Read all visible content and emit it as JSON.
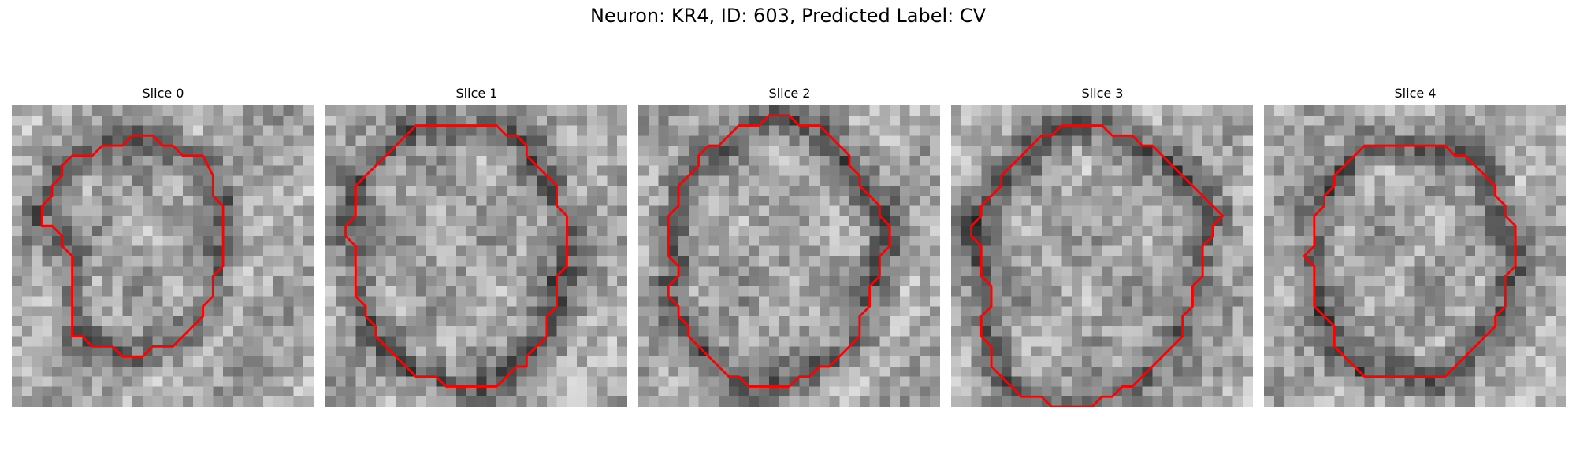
{
  "figure": {
    "title": "Neuron: KR4, ID: 603, Predicted Label: CV"
  },
  "contour_color": "#ff0000",
  "grid_size": 30,
  "panels": [
    {
      "title": "Slice 0",
      "seed": 11,
      "contour": [
        [
          13,
          3
        ],
        [
          14,
          3
        ],
        [
          15,
          4
        ],
        [
          16,
          4
        ],
        [
          17,
          5
        ],
        [
          19,
          5
        ],
        [
          20,
          7
        ],
        [
          20,
          9
        ],
        [
          21,
          10
        ],
        [
          21,
          16
        ],
        [
          20,
          17
        ],
        [
          20,
          19
        ],
        [
          19,
          20
        ],
        [
          19,
          21
        ],
        [
          16,
          24
        ],
        [
          14,
          24
        ],
        [
          13,
          25
        ],
        [
          11,
          25
        ],
        [
          10,
          24
        ],
        [
          8,
          24
        ],
        [
          7,
          23
        ],
        [
          6,
          23
        ],
        [
          6,
          15
        ],
        [
          5,
          14
        ],
        [
          5,
          13
        ],
        [
          4,
          12
        ],
        [
          3,
          12
        ],
        [
          3,
          10
        ],
        [
          4,
          9
        ],
        [
          4,
          8
        ],
        [
          5,
          7
        ],
        [
          5,
          6
        ],
        [
          6,
          5
        ],
        [
          8,
          5
        ],
        [
          9,
          4
        ],
        [
          11,
          4
        ],
        [
          12,
          3
        ]
      ]
    },
    {
      "title": "Slice 1",
      "seed": 23,
      "contour": [
        [
          12,
          2
        ],
        [
          17,
          2
        ],
        [
          18,
          3
        ],
        [
          19,
          3
        ],
        [
          20,
          4
        ],
        [
          20,
          5
        ],
        [
          21,
          6
        ],
        [
          22,
          7
        ],
        [
          23,
          8
        ],
        [
          23,
          10
        ],
        [
          24,
          11
        ],
        [
          24,
          16
        ],
        [
          23,
          17
        ],
        [
          23,
          20
        ],
        [
          22,
          21
        ],
        [
          22,
          23
        ],
        [
          21,
          24
        ],
        [
          20,
          25
        ],
        [
          20,
          26
        ],
        [
          19,
          26
        ],
        [
          18,
          27
        ],
        [
          17,
          28
        ],
        [
          12,
          28
        ],
        [
          11,
          27
        ],
        [
          9,
          27
        ],
        [
          8,
          26
        ],
        [
          7,
          25
        ],
        [
          6,
          24
        ],
        [
          5,
          23
        ],
        [
          5,
          22
        ],
        [
          4,
          21
        ],
        [
          4,
          20
        ],
        [
          3,
          19
        ],
        [
          3,
          14
        ],
        [
          2,
          13
        ],
        [
          2,
          12
        ],
        [
          3,
          11
        ],
        [
          3,
          8
        ],
        [
          4,
          7
        ],
        [
          5,
          6
        ],
        [
          6,
          5
        ],
        [
          7,
          4
        ],
        [
          8,
          3
        ],
        [
          9,
          2
        ]
      ]
    },
    {
      "title": "Slice 2",
      "seed": 37,
      "contour": [
        [
          13,
          1
        ],
        [
          15,
          1
        ],
        [
          16,
          2
        ],
        [
          18,
          2
        ],
        [
          19,
          3
        ],
        [
          20,
          4
        ],
        [
          21,
          5
        ],
        [
          21,
          6
        ],
        [
          22,
          7
        ],
        [
          22,
          8
        ],
        [
          23,
          9
        ],
        [
          24,
          10
        ],
        [
          24,
          11
        ],
        [
          25,
          12
        ],
        [
          25,
          14
        ],
        [
          24,
          15
        ],
        [
          24,
          17
        ],
        [
          23,
          18
        ],
        [
          23,
          20
        ],
        [
          22,
          21
        ],
        [
          22,
          23
        ],
        [
          21,
          24
        ],
        [
          20,
          25
        ],
        [
          19,
          26
        ],
        [
          18,
          26
        ],
        [
          17,
          27
        ],
        [
          16,
          27
        ],
        [
          15,
          28
        ],
        [
          11,
          28
        ],
        [
          10,
          27
        ],
        [
          9,
          27
        ],
        [
          8,
          26
        ],
        [
          7,
          25
        ],
        [
          6,
          24
        ],
        [
          5,
          23
        ],
        [
          5,
          22
        ],
        [
          4,
          21
        ],
        [
          4,
          20
        ],
        [
          3,
          19
        ],
        [
          3,
          18
        ],
        [
          4,
          17
        ],
        [
          4,
          16
        ],
        [
          3,
          15
        ],
        [
          3,
          11
        ],
        [
          4,
          10
        ],
        [
          4,
          8
        ],
        [
          5,
          7
        ],
        [
          6,
          6
        ],
        [
          6,
          5
        ],
        [
          7,
          4
        ],
        [
          8,
          4
        ],
        [
          9,
          3
        ],
        [
          10,
          2
        ],
        [
          12,
          2
        ]
      ]
    },
    {
      "title": "Slice 3",
      "seed": 51,
      "contour": [
        [
          11,
          2
        ],
        [
          15,
          2
        ],
        [
          16,
          3
        ],
        [
          18,
          3
        ],
        [
          19,
          4
        ],
        [
          20,
          4
        ],
        [
          21,
          5
        ],
        [
          22,
          6
        ],
        [
          23,
          7
        ],
        [
          24,
          8
        ],
        [
          25,
          9
        ],
        [
          26,
          10
        ],
        [
          27,
          11
        ],
        [
          26,
          12
        ],
        [
          26,
          13
        ],
        [
          25,
          14
        ],
        [
          25,
          17
        ],
        [
          24,
          18
        ],
        [
          24,
          20
        ],
        [
          23,
          21
        ],
        [
          23,
          23
        ],
        [
          22,
          24
        ],
        [
          21,
          25
        ],
        [
          20,
          26
        ],
        [
          19,
          27
        ],
        [
          18,
          28
        ],
        [
          17,
          28
        ],
        [
          16,
          29
        ],
        [
          15,
          29
        ],
        [
          14,
          30
        ],
        [
          10,
          30
        ],
        [
          9,
          29
        ],
        [
          7,
          29
        ],
        [
          6,
          28
        ],
        [
          5,
          27
        ],
        [
          4,
          26
        ],
        [
          4,
          24
        ],
        [
          3,
          23
        ],
        [
          3,
          21
        ],
        [
          4,
          20
        ],
        [
          4,
          18
        ],
        [
          3,
          17
        ],
        [
          3,
          14
        ],
        [
          2,
          13
        ],
        [
          2,
          12
        ],
        [
          3,
          11
        ],
        [
          3,
          10
        ],
        [
          4,
          9
        ],
        [
          5,
          8
        ],
        [
          5,
          7
        ],
        [
          6,
          6
        ],
        [
          7,
          5
        ],
        [
          8,
          4
        ],
        [
          9,
          3
        ],
        [
          10,
          3
        ]
      ]
    },
    {
      "title": "Slice 4",
      "seed": 73,
      "contour": [
        [
          10,
          4
        ],
        [
          18,
          4
        ],
        [
          19,
          5
        ],
        [
          20,
          5
        ],
        [
          21,
          6
        ],
        [
          22,
          7
        ],
        [
          23,
          8
        ],
        [
          23,
          9
        ],
        [
          24,
          10
        ],
        [
          24,
          11
        ],
        [
          25,
          12
        ],
        [
          25,
          16
        ],
        [
          24,
          17
        ],
        [
          24,
          20
        ],
        [
          23,
          21
        ],
        [
          23,
          22
        ],
        [
          22,
          23
        ],
        [
          21,
          24
        ],
        [
          20,
          25
        ],
        [
          19,
          26
        ],
        [
          18,
          27
        ],
        [
          10,
          27
        ],
        [
          9,
          26
        ],
        [
          8,
          25
        ],
        [
          7,
          24
        ],
        [
          7,
          22
        ],
        [
          6,
          21
        ],
        [
          5,
          20
        ],
        [
          5,
          19
        ],
        [
          5,
          16
        ],
        [
          4,
          15
        ],
        [
          5,
          14
        ],
        [
          5,
          11
        ],
        [
          6,
          10
        ],
        [
          6,
          9
        ],
        [
          7,
          8
        ],
        [
          7,
          7
        ],
        [
          8,
          6
        ],
        [
          9,
          5
        ]
      ]
    }
  ]
}
